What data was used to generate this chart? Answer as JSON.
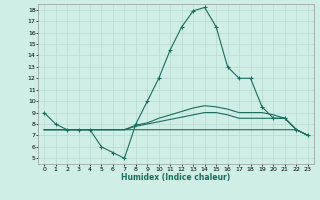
{
  "xlabel": "Humidex (Indice chaleur)",
  "background_color": "#ceeee6",
  "grid_color": "#b8d8d0",
  "line_color": "#1a6e5e",
  "xlim": [
    -0.5,
    23.5
  ],
  "ylim": [
    4.5,
    18.5
  ],
  "xticks": [
    0,
    1,
    2,
    3,
    4,
    5,
    6,
    7,
    8,
    9,
    10,
    11,
    12,
    13,
    14,
    15,
    16,
    17,
    18,
    19,
    20,
    21,
    22,
    23
  ],
  "yticks": [
    5,
    6,
    7,
    8,
    9,
    10,
    11,
    12,
    13,
    14,
    15,
    16,
    17,
    18
  ],
  "series1_x": [
    0,
    1,
    2,
    3,
    4,
    5,
    6,
    7,
    8,
    9,
    10,
    11,
    12,
    13,
    14,
    15,
    16,
    17,
    18,
    19,
    20,
    21,
    22,
    23
  ],
  "series1_y": [
    9.0,
    8.0,
    7.5,
    7.5,
    7.5,
    6.0,
    5.5,
    5.0,
    8.0,
    10.0,
    12.0,
    14.5,
    16.5,
    17.9,
    18.2,
    16.5,
    13.0,
    12.0,
    12.0,
    9.5,
    8.5,
    8.5,
    7.5,
    7.0
  ],
  "series2_x": [
    0,
    1,
    2,
    3,
    4,
    5,
    6,
    7,
    8,
    9,
    10,
    11,
    12,
    13,
    14,
    15,
    16,
    17,
    18,
    19,
    20,
    21,
    22,
    23
  ],
  "series2_y": [
    7.5,
    7.5,
    7.5,
    7.5,
    7.5,
    7.5,
    7.5,
    7.5,
    7.5,
    7.5,
    7.5,
    7.5,
    7.5,
    7.5,
    7.5,
    7.5,
    7.5,
    7.5,
    7.5,
    7.5,
    7.5,
    7.5,
    7.5,
    7.0
  ],
  "series3_x": [
    0,
    1,
    2,
    3,
    4,
    5,
    6,
    7,
    8,
    9,
    10,
    11,
    12,
    13,
    14,
    15,
    16,
    17,
    18,
    19,
    20,
    21,
    22,
    23
  ],
  "series3_y": [
    7.5,
    7.5,
    7.5,
    7.5,
    7.5,
    7.5,
    7.5,
    7.5,
    7.8,
    8.0,
    8.2,
    8.4,
    8.6,
    8.8,
    9.0,
    9.0,
    8.8,
    8.5,
    8.5,
    8.5,
    8.5,
    8.5,
    7.5,
    7.0
  ],
  "series4_x": [
    0,
    1,
    2,
    3,
    4,
    5,
    6,
    7,
    8,
    9,
    10,
    11,
    12,
    13,
    14,
    15,
    16,
    17,
    18,
    19,
    20,
    21,
    22,
    23
  ],
  "series4_y": [
    7.5,
    7.5,
    7.5,
    7.5,
    7.5,
    7.5,
    7.5,
    7.5,
    7.9,
    8.1,
    8.5,
    8.8,
    9.1,
    9.4,
    9.6,
    9.5,
    9.3,
    9.0,
    9.0,
    9.0,
    8.8,
    8.5,
    7.5,
    7.0
  ]
}
